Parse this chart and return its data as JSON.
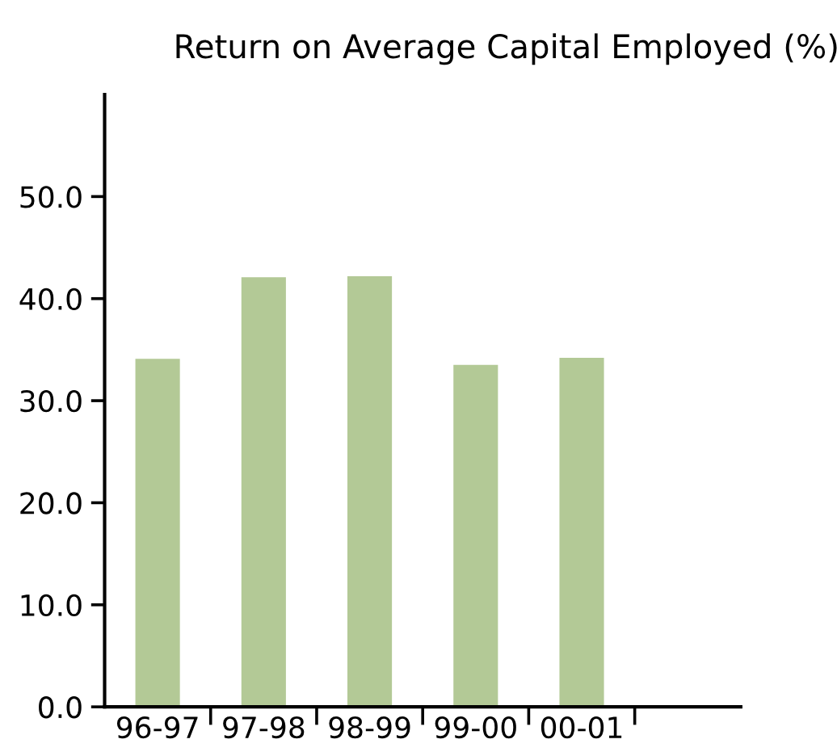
{
  "chart_data": {
    "type": "bar",
    "title": "Return on Average Capital Employed (%)",
    "categories": [
      "96-97",
      "97-98",
      "98-99",
      "99-00",
      "00-01"
    ],
    "values": [
      34.1,
      42.1,
      42.2,
      33.5,
      34.2
    ],
    "color": "#b3c996",
    "ylim": [
      0,
      60
    ],
    "yticks": [
      {
        "value": 0,
        "label": "0.0"
      },
      {
        "value": 10,
        "label": "10.0"
      },
      {
        "value": 20,
        "label": "20.0"
      },
      {
        "value": 30,
        "label": "30.0"
      },
      {
        "value": 40,
        "label": "40.0"
      },
      {
        "value": 50,
        "label": "50.0"
      }
    ],
    "grid": false
  }
}
